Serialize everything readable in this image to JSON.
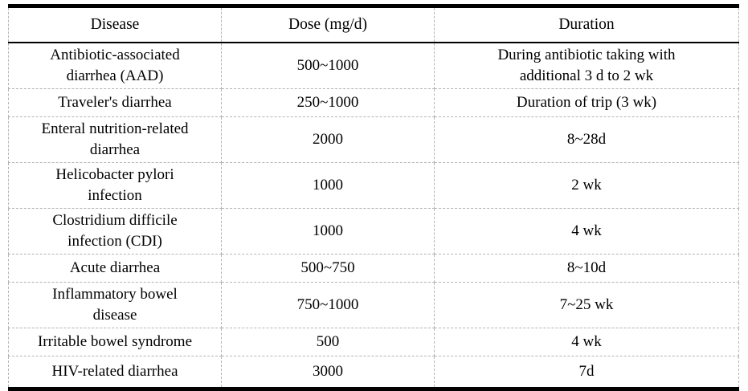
{
  "table": {
    "columns": [
      "Disease",
      "Dose (mg/d)",
      "Duration"
    ],
    "rows": [
      {
        "disease": "Antibiotic-associated\ndiarrhea (AAD)",
        "dose": "500~1000",
        "duration": "During antibiotic taking with\nadditional 3 d to 2 wk"
      },
      {
        "disease": "Traveler's diarrhea",
        "dose": "250~1000",
        "duration": "Duration of trip (3 wk)"
      },
      {
        "disease": "Enteral nutrition-related\ndiarrhea",
        "dose": "2000",
        "duration": "8~28d"
      },
      {
        "disease": "Helicobacter pylori\ninfection",
        "dose": "1000",
        "duration": "2 wk"
      },
      {
        "disease": "Clostridium difficile\ninfection (CDI)",
        "dose": "1000",
        "duration": "4 wk"
      },
      {
        "disease": "Acute diarrhea",
        "dose": "500~750",
        "duration": "8~10d"
      },
      {
        "disease": "Inflammatory bowel\ndisease",
        "dose": "750~1000",
        "duration": "7~25 wk"
      },
      {
        "disease": "Irritable bowel syndrome",
        "dose": "500",
        "duration": "4 wk"
      },
      {
        "disease": "HIV-related diarrhea",
        "dose": "3000",
        "duration": "7d"
      }
    ],
    "colors": {
      "border_strong": "#000000",
      "border_dashed": "#b4b4b4",
      "text": "#000000",
      "background": "#ffffff"
    }
  }
}
